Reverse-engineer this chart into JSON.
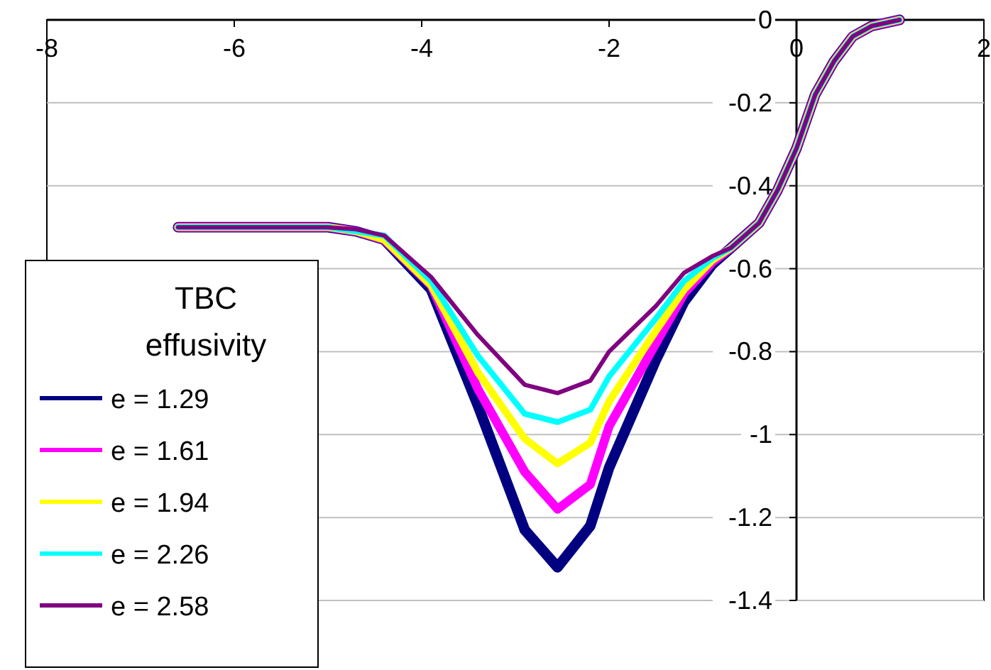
{
  "chart_data": {
    "type": "line",
    "legend_title": "TBC effusivity",
    "x": [
      -6.6,
      -5.0,
      -4.7,
      -4.4,
      -3.9,
      -3.4,
      -2.9,
      -2.55,
      -2.2,
      -2.0,
      -1.5,
      -1.2,
      -0.9,
      -0.7,
      -0.4,
      -0.2,
      0,
      0.2,
      0.4,
      0.6,
      0.8,
      1.1
    ],
    "series": [
      {
        "name": "e = 1.29",
        "color": "#000080",
        "values": [
          -0.5,
          -0.5,
          -0.51,
          -0.53,
          -0.65,
          -0.93,
          -1.23,
          -1.32,
          -1.22,
          -1.08,
          -0.82,
          -0.68,
          -0.59,
          -0.55,
          -0.49,
          -0.41,
          -0.31,
          -0.18,
          -0.1,
          -0.04,
          -0.015,
          0
        ]
      },
      {
        "name": "e = 1.61",
        "color": "#ff00ff",
        "values": [
          -0.5,
          -0.5,
          -0.51,
          -0.53,
          -0.64,
          -0.89,
          -1.09,
          -1.18,
          -1.12,
          -0.98,
          -0.78,
          -0.66,
          -0.585,
          -0.55,
          -0.49,
          -0.41,
          -0.31,
          -0.18,
          -0.1,
          -0.04,
          -0.015,
          0
        ]
      },
      {
        "name": "e = 1.94",
        "color": "#ffff00",
        "values": [
          -0.5,
          -0.5,
          -0.51,
          -0.53,
          -0.64,
          -0.85,
          -1.01,
          -1.07,
          -1.02,
          -0.92,
          -0.75,
          -0.65,
          -0.58,
          -0.55,
          -0.49,
          -0.41,
          -0.31,
          -0.18,
          -0.1,
          -0.04,
          -0.015,
          0
        ]
      },
      {
        "name": "e = 2.26",
        "color": "#00ffff",
        "values": [
          -0.5,
          -0.5,
          -0.51,
          -0.52,
          -0.63,
          -0.81,
          -0.95,
          -0.97,
          -0.94,
          -0.86,
          -0.72,
          -0.63,
          -0.575,
          -0.55,
          -0.49,
          -0.41,
          -0.31,
          -0.18,
          -0.1,
          -0.04,
          -0.015,
          0
        ]
      },
      {
        "name": "e = 2.58",
        "color": "#800080",
        "values": [
          -0.5,
          -0.5,
          -0.505,
          -0.52,
          -0.62,
          -0.76,
          -0.88,
          -0.9,
          -0.87,
          -0.8,
          -0.69,
          -0.61,
          -0.57,
          -0.55,
          -0.49,
          -0.41,
          -0.31,
          -0.18,
          -0.1,
          -0.04,
          -0.015,
          0
        ]
      }
    ],
    "xlim": [
      -8,
      2
    ],
    "xticks": [
      -8,
      -6,
      -4,
      -2,
      0,
      2
    ],
    "ylim": [
      -1.4,
      0
    ],
    "yticks": [
      {
        "value": -1.4,
        "label": "-1.4"
      },
      {
        "value": -1.2,
        "label": "-1.2"
      },
      -1,
      {
        "value": -0.8,
        "label": "-0.8"
      },
      {
        "value": -0.6,
        "label": "-0.6"
      },
      {
        "value": -0.4,
        "label": "-0.4"
      },
      {
        "value": -0.2,
        "label": "-0.2"
      },
      0
    ],
    "grid": "y",
    "legend": "bottom left",
    "marker": "none",
    "line_style": "solid"
  }
}
